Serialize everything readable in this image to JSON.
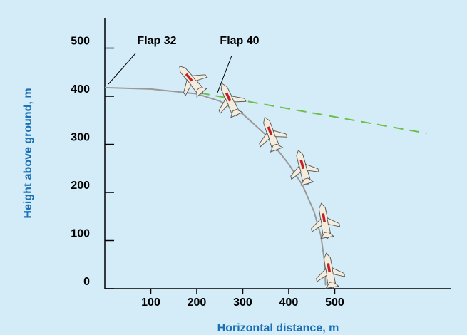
{
  "chart_data": {
    "type": "line",
    "xlabel": "Horizontal distance, m",
    "ylabel": "Height above ground, m",
    "annotations": [
      "Flap 32",
      "Flap 40"
    ],
    "series": [
      {
        "color": "#9a9a9a",
        "style": "solid",
        "x": [
          0,
          100,
          200,
          250,
          300,
          350,
          400,
          430,
          455,
          470,
          478,
          480
        ],
        "values": [
          418,
          415,
          405,
          390,
          363,
          320,
          259,
          215,
          160,
          110,
          55,
          7
        ]
      },
      {
        "color": "#6cc04a",
        "style": "dashed",
        "x": [
          206,
          700
        ],
        "values": [
          407,
          323
        ]
      }
    ],
    "xlim": [
      0,
      752
    ],
    "ylim": [
      0,
      563
    ],
    "xticks": [
      100,
      200,
      300,
      400,
      500
    ],
    "yticks": [
      0,
      100,
      200,
      300,
      400,
      500
    ]
  }
}
